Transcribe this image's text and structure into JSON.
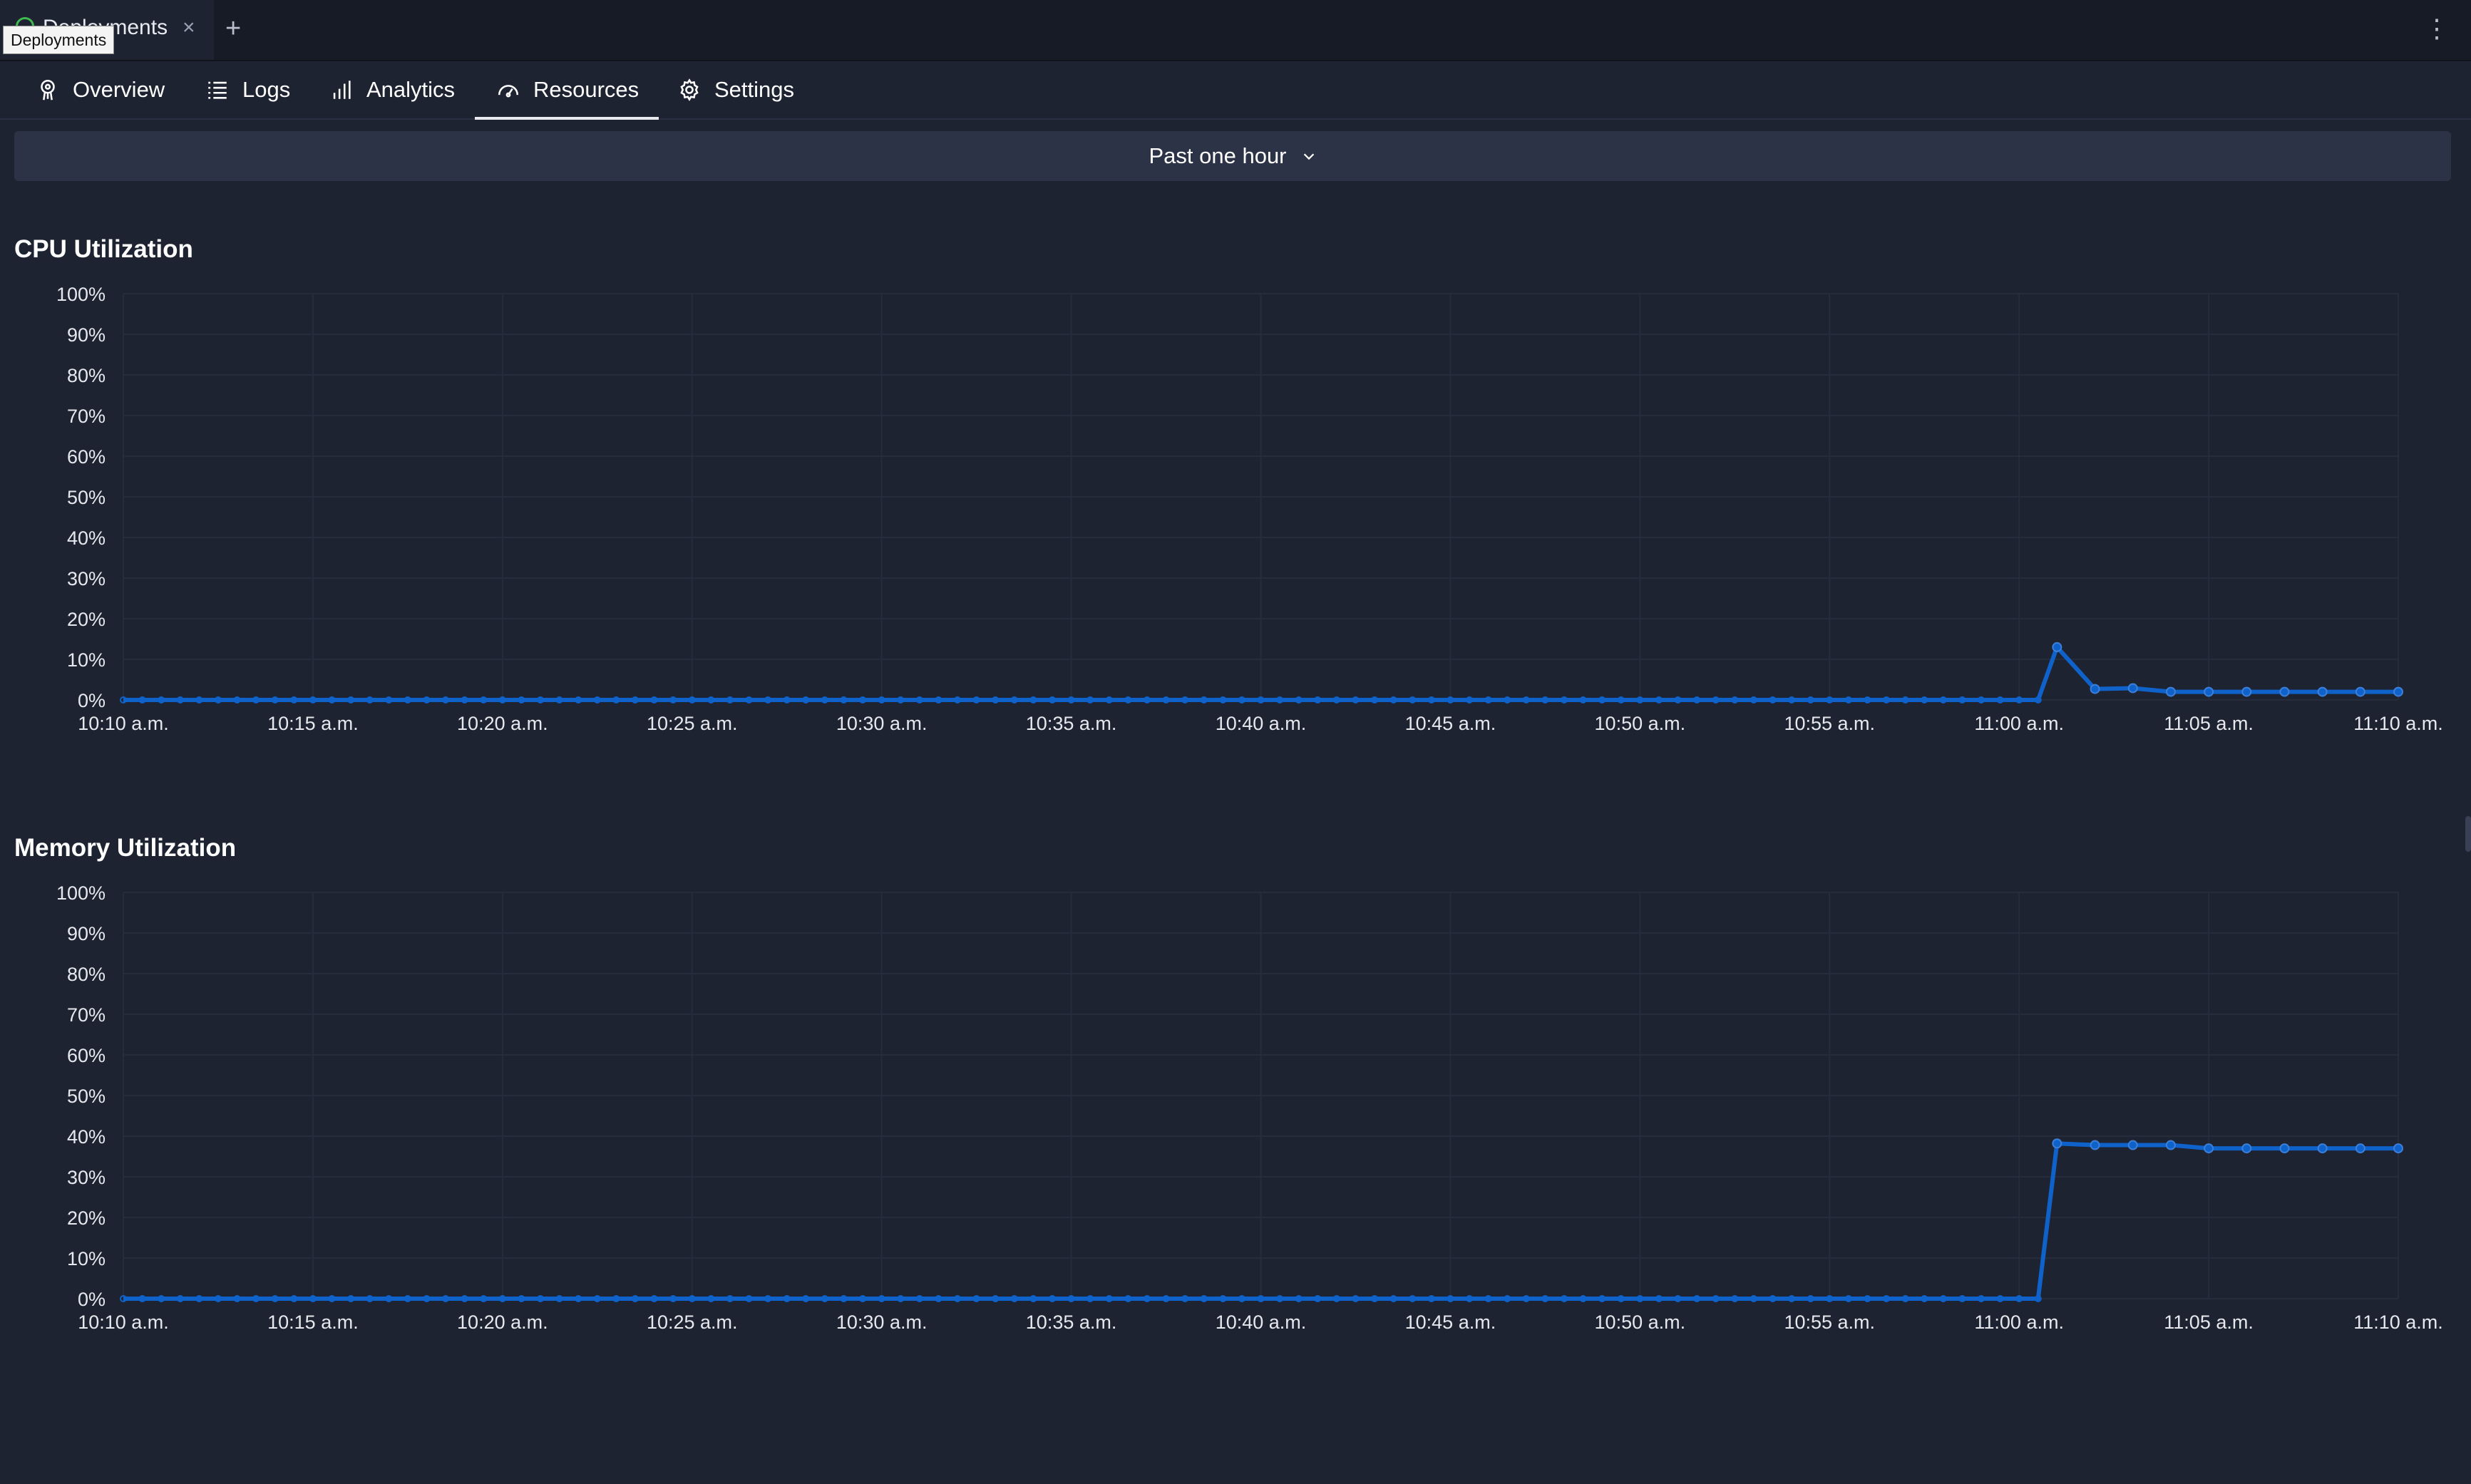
{
  "window": {
    "tab_title": "Deployments",
    "tab_close": "×",
    "new_tab": "+",
    "menu": "⋮",
    "tooltip": "Deployments"
  },
  "nav": {
    "items": [
      {
        "label": "Overview",
        "icon": "rocket-icon"
      },
      {
        "label": "Logs",
        "icon": "list-icon"
      },
      {
        "label": "Analytics",
        "icon": "bar-chart-icon"
      },
      {
        "label": "Resources",
        "icon": "gauge-icon",
        "active": true
      },
      {
        "label": "Settings",
        "icon": "gear-icon"
      }
    ]
  },
  "range": {
    "label": "Past one hour"
  },
  "colors": {
    "line": "#0f62c9",
    "grid": "#262c3b",
    "background": "#1e2332"
  },
  "chart_data": [
    {
      "type": "line",
      "title": "CPU Utilization",
      "xlabel": "",
      "ylabel": "",
      "ylim": [
        0,
        100
      ],
      "yticks": [
        "0%",
        "10%",
        "20%",
        "30%",
        "40%",
        "50%",
        "60%",
        "70%",
        "80%",
        "90%",
        "100%"
      ],
      "xticks": [
        "10:10 a.m.",
        "10:15 a.m.",
        "10:20 a.m.",
        "10:25 a.m.",
        "10:30 a.m.",
        "10:35 a.m.",
        "10:40 a.m.",
        "10:45 a.m.",
        "10:50 a.m.",
        "10:55 a.m.",
        "11:00 a.m.",
        "11:05 a.m.",
        "11:10 a.m."
      ],
      "grid": true,
      "series": [
        {
          "x_minutes_range": [
            0,
            60
          ],
          "points": [
            [
              0,
              0
            ],
            [
              50.5,
              0
            ],
            [
              51,
              13
            ],
            [
              52,
              2.7
            ],
            [
              53,
              2.9
            ],
            [
              54,
              2
            ],
            [
              55,
              2
            ],
            [
              56,
              2
            ],
            [
              57,
              2
            ],
            [
              58,
              2
            ],
            [
              59,
              2
            ],
            [
              60,
              2
            ]
          ]
        }
      ]
    },
    {
      "type": "line",
      "title": "Memory Utilization",
      "xlabel": "",
      "ylabel": "",
      "ylim": [
        0,
        100
      ],
      "yticks": [
        "0%",
        "10%",
        "20%",
        "30%",
        "40%",
        "50%",
        "60%",
        "70%",
        "80%",
        "90%",
        "100%"
      ],
      "xticks": [
        "10:10 a.m.",
        "10:15 a.m.",
        "10:20 a.m.",
        "10:25 a.m.",
        "10:30 a.m.",
        "10:35 a.m.",
        "10:40 a.m.",
        "10:45 a.m.",
        "10:50 a.m.",
        "10:55 a.m.",
        "11:00 a.m.",
        "11:05 a.m.",
        "11:10 a.m."
      ],
      "grid": true,
      "series": [
        {
          "x_minutes_range": [
            0,
            60
          ],
          "points": [
            [
              0,
              0
            ],
            [
              50.5,
              0
            ],
            [
              51,
              38.2
            ],
            [
              52,
              37.8
            ],
            [
              53,
              37.8
            ],
            [
              54,
              37.8
            ],
            [
              55,
              37
            ],
            [
              56,
              37
            ],
            [
              57,
              37
            ],
            [
              58,
              37
            ],
            [
              59,
              37
            ],
            [
              60,
              37
            ]
          ]
        }
      ]
    }
  ]
}
